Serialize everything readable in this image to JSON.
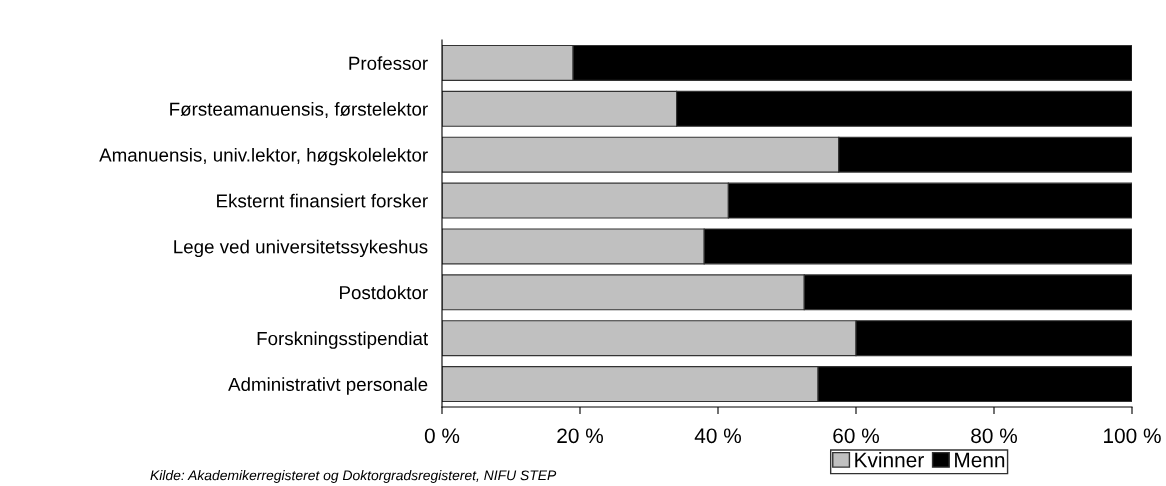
{
  "chart_data": {
    "type": "bar",
    "orientation": "horizontal",
    "stacked": true,
    "categories": [
      "Professor",
      "Førsteamanuensis, førstelektor",
      "Amanuensis, univ.lektor, høgskolelektor",
      "Eksternt finansiert forsker",
      "Lege ved universitetssykeshus",
      "Postdoktor",
      "Forskningsstipendiat",
      "Administrativt personale"
    ],
    "series": [
      {
        "name": "Kvinner",
        "color": "#c0c0c0",
        "values": [
          19,
          34,
          57.5,
          41.5,
          38,
          52.5,
          60,
          54.5
        ]
      },
      {
        "name": "Menn",
        "color": "#000000",
        "values": [
          81,
          66,
          42.5,
          58.5,
          62,
          47.5,
          40,
          45.5
        ]
      }
    ],
    "xlim": [
      0,
      100
    ],
    "xticks": [
      {
        "value": 0,
        "label": "0 %"
      },
      {
        "value": 20,
        "label": "20 %"
      },
      {
        "value": 40,
        "label": "40 %"
      },
      {
        "value": 60,
        "label": "60 %"
      },
      {
        "value": 80,
        "label": "80 %"
      },
      {
        "value": 100,
        "label": "100 %"
      }
    ],
    "grid": false,
    "legend": "bottom right",
    "annotations": [
      "Kilde: Akademikerregisteret og Doktorgradsregisteret, NIFU STEP"
    ]
  }
}
